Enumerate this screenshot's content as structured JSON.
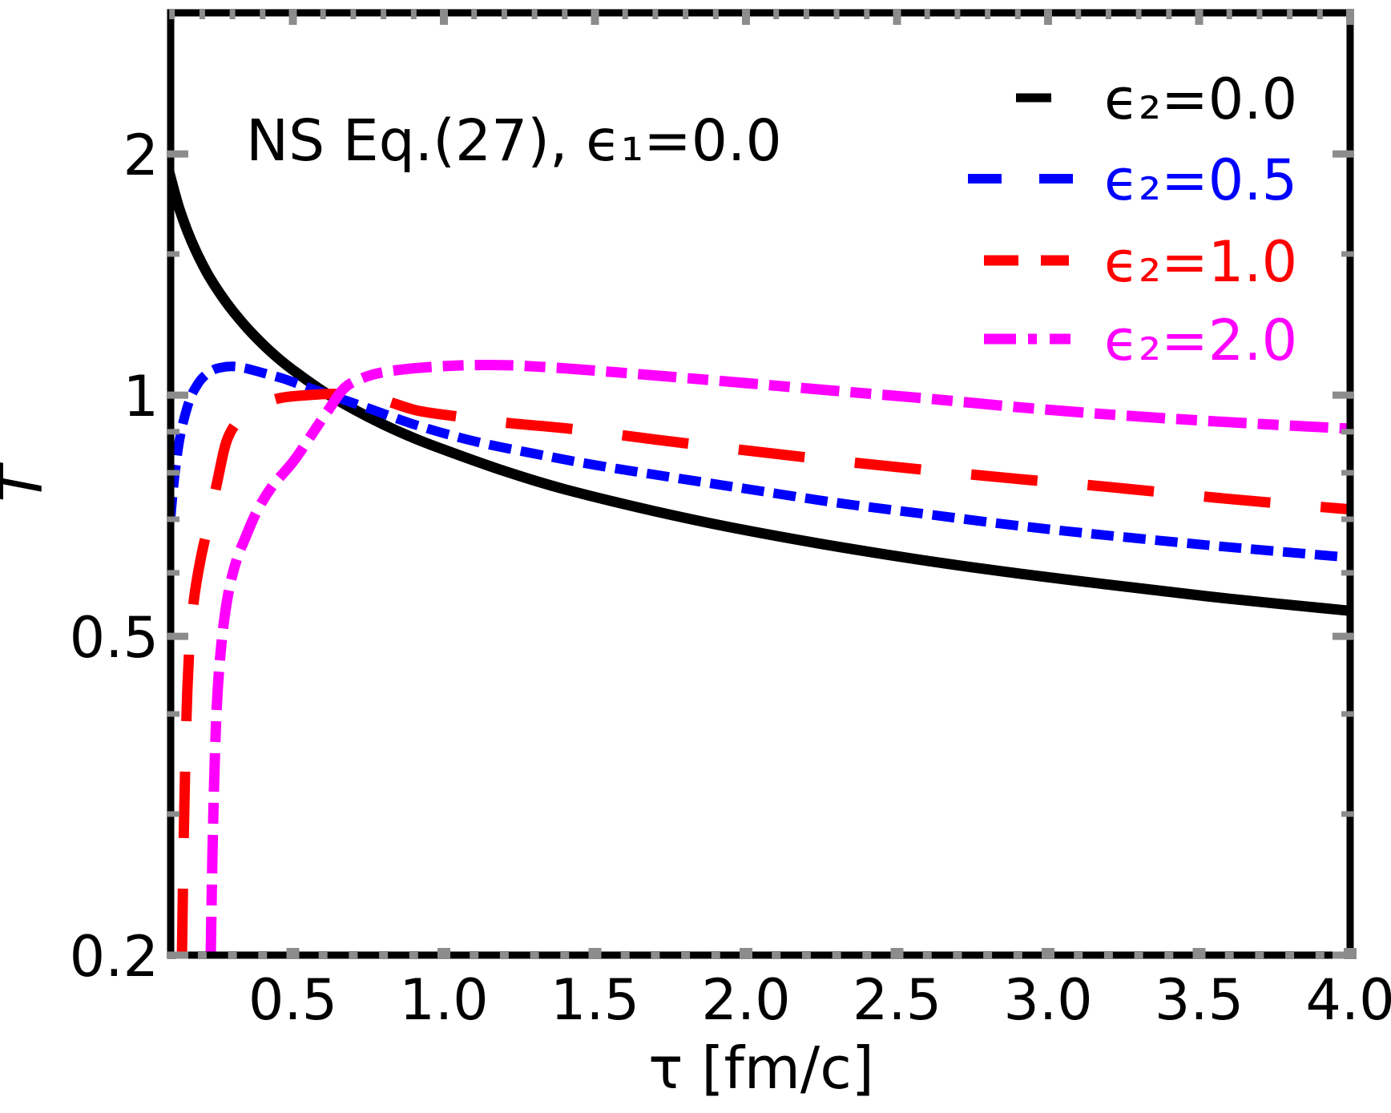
{
  "figure": {
    "background": "#ffffff",
    "title": "NS Eq.(27), ϵ₁=0.0"
  },
  "axes": {
    "frame_color": "#000000",
    "tick_color": "#8c8c8c",
    "text_color": "#000000",
    "x": {
      "label": "τ [fm/c]",
      "scale": "linear",
      "range": [
        0.0955,
        4.0
      ],
      "major_ticks": [
        0.5,
        1.0,
        1.5,
        2.0,
        2.5,
        3.0,
        3.5,
        4.0
      ],
      "major_tick_labels": [
        "0.5",
        "1.0",
        "1.5",
        "2.0",
        "2.5",
        "3.0",
        "3.5",
        "4.0"
      ],
      "minor_ticks": [
        0.1,
        0.2,
        0.3,
        0.4,
        0.6,
        0.7,
        0.8,
        0.9,
        1.1,
        1.2,
        1.3,
        1.4,
        1.6,
        1.7,
        1.8,
        1.9,
        2.1,
        2.2,
        2.3,
        2.4,
        2.6,
        2.7,
        2.8,
        2.9,
        3.1,
        3.2,
        3.3,
        3.4,
        3.6,
        3.7,
        3.8,
        3.9
      ]
    },
    "y": {
      "label": "T̃",
      "scale": "log",
      "range": [
        0.2,
        3.0
      ],
      "major_ticks": [
        2,
        1,
        0.5,
        0.2
      ],
      "major_tick_labels": [
        "2",
        "1",
        "0.5",
        "0.2"
      ],
      "minor_ticks": [
        1.5,
        0.9,
        0.8,
        0.7,
        0.6,
        0.4,
        0.3
      ]
    }
  },
  "legend": {
    "items": [
      {
        "label": "ϵ₂=0.0",
        "color": "#000000",
        "dash": "solid"
      },
      {
        "label": "ϵ₂=0.5",
        "color": "#0000ff",
        "dash": "dashed"
      },
      {
        "label": "ϵ₂=1.0",
        "color": "#ff0000",
        "dash": "long-dashed"
      },
      {
        "label": "ϵ₂=2.0",
        "color": "#ff00ff",
        "dash": "dash-dot"
      }
    ]
  },
  "chart_data": {
    "type": "line",
    "title": "NS Eq.(27), ϵ₁=0.0",
    "xlabel": "τ [fm/c]",
    "ylabel": "T̃",
    "x_scale": "linear",
    "y_scale": "log",
    "x_range": [
      0.0955,
      4.0
    ],
    "y_range": [
      0.2,
      3.0
    ],
    "grid": false,
    "legend_position": "top-right",
    "series": [
      {
        "name": "ϵ₂=0.0",
        "color": "#000000",
        "style": "solid",
        "dash": [],
        "width": 13,
        "points": [
          [
            0.09,
            1.903
          ],
          [
            0.12,
            1.729
          ],
          [
            0.15,
            1.605
          ],
          [
            0.18,
            1.51
          ],
          [
            0.22,
            1.412
          ],
          [
            0.26,
            1.337
          ],
          [
            0.3,
            1.275
          ],
          [
            0.35,
            1.211
          ],
          [
            0.4,
            1.158
          ],
          [
            0.45,
            1.113
          ],
          [
            0.5,
            1.075
          ],
          [
            0.6,
            1.011
          ],
          [
            0.7,
            0.961
          ],
          [
            0.8,
            0.919
          ],
          [
            0.9,
            0.884
          ],
          [
            1.0,
            0.855
          ],
          [
            1.2,
            0.804
          ],
          [
            1.4,
            0.763
          ],
          [
            1.7,
            0.716
          ],
          [
            2.0,
            0.678
          ],
          [
            2.4,
            0.638
          ],
          [
            2.8,
            0.606
          ],
          [
            3.2,
            0.58
          ],
          [
            3.6,
            0.557
          ],
          [
            4.0,
            0.538
          ]
        ]
      },
      {
        "name": "ϵ₂=0.5",
        "color": "#0000ff",
        "style": "dashed",
        "dash": [
          28,
          12
        ],
        "width": 12,
        "points": [
          [
            0.095,
            0.7
          ],
          [
            0.105,
            0.77
          ],
          [
            0.115,
            0.83
          ],
          [
            0.125,
            0.88
          ],
          [
            0.14,
            0.935
          ],
          [
            0.16,
            0.99
          ],
          [
            0.18,
            1.025
          ],
          [
            0.2,
            1.05
          ],
          [
            0.23,
            1.072
          ],
          [
            0.26,
            1.082
          ],
          [
            0.3,
            1.086
          ],
          [
            0.34,
            1.081
          ],
          [
            0.4,
            1.066
          ],
          [
            0.47,
            1.048
          ],
          [
            0.55,
            1.022
          ],
          [
            0.65,
            0.992
          ],
          [
            0.75,
            0.963
          ],
          [
            0.91,
            0.917
          ],
          [
            1.1,
            0.876
          ],
          [
            1.3,
            0.845
          ],
          [
            1.5,
            0.818
          ],
          [
            1.75,
            0.79
          ],
          [
            2.0,
            0.764
          ],
          [
            2.3,
            0.734
          ],
          [
            2.6,
            0.71
          ],
          [
            2.9,
            0.687
          ],
          [
            3.2,
            0.668
          ],
          [
            3.6,
            0.646
          ],
          [
            4.0,
            0.627
          ]
        ]
      },
      {
        "name": "ϵ₂=1.0",
        "color": "#ff0000",
        "style": "long-dashed",
        "dash": [
          83,
          63
        ],
        "width": 13,
        "points": [
          [
            0.133,
            0.2
          ],
          [
            0.138,
            0.27
          ],
          [
            0.144,
            0.35
          ],
          [
            0.151,
            0.43
          ],
          [
            0.16,
            0.5
          ],
          [
            0.175,
            0.565
          ],
          [
            0.195,
            0.625
          ],
          [
            0.22,
            0.69
          ],
          [
            0.25,
            0.78
          ],
          [
            0.28,
            0.875
          ],
          [
            0.32,
            0.93
          ],
          [
            0.37,
            0.962
          ],
          [
            0.45,
            0.99
          ],
          [
            0.55,
            1.0
          ],
          [
            0.65,
            1.003
          ],
          [
            0.78,
            0.99
          ],
          [
            0.91,
            0.957
          ],
          [
            1.05,
            0.94
          ],
          [
            1.2,
            0.924
          ],
          [
            1.44,
            0.906
          ],
          [
            1.7,
            0.88
          ],
          [
            2.0,
            0.853
          ],
          [
            2.3,
            0.828
          ],
          [
            2.6,
            0.806
          ],
          [
            2.9,
            0.786
          ],
          [
            3.2,
            0.768
          ],
          [
            3.6,
            0.742
          ],
          [
            4.0,
            0.72
          ]
        ]
      },
      {
        "name": "ϵ₂=2.0",
        "color": "#ff00ff",
        "style": "dash-dot",
        "dash": [
          48,
          14,
          26,
          14
        ],
        "width": 13,
        "points": [
          [
            0.228,
            0.2
          ],
          [
            0.234,
            0.27
          ],
          [
            0.24,
            0.335
          ],
          [
            0.247,
            0.4
          ],
          [
            0.256,
            0.455
          ],
          [
            0.27,
            0.515
          ],
          [
            0.29,
            0.575
          ],
          [
            0.315,
            0.625
          ],
          [
            0.34,
            0.66
          ],
          [
            0.38,
            0.715
          ],
          [
            0.43,
            0.768
          ],
          [
            0.5,
            0.825
          ],
          [
            0.56,
            0.89
          ],
          [
            0.615,
            0.955
          ],
          [
            0.67,
            1.02
          ],
          [
            0.73,
            1.05
          ],
          [
            0.8,
            1.068
          ],
          [
            0.91,
            1.081
          ],
          [
            1.05,
            1.089
          ],
          [
            1.2,
            1.09
          ],
          [
            1.35,
            1.083
          ],
          [
            1.5,
            1.073
          ],
          [
            1.7,
            1.058
          ],
          [
            2.0,
            1.035
          ],
          [
            2.3,
            1.012
          ],
          [
            2.6,
            0.99
          ],
          [
            2.9,
            0.966
          ],
          [
            3.2,
            0.946
          ],
          [
            3.6,
            0.925
          ],
          [
            4.0,
            0.908
          ]
        ]
      }
    ]
  }
}
